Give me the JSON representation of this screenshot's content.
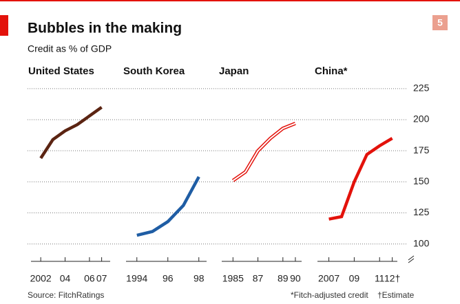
{
  "header": {
    "title": "Bubbles in the making",
    "subtitle": "Credit as % of GDP",
    "badge": "5"
  },
  "footer": {
    "source": "Source: FitchRatings",
    "notes": [
      "*Fitch-adjusted credit",
      "†Estimate"
    ]
  },
  "chart_data": [
    {
      "type": "line",
      "title": "United States",
      "color": "#5b2412",
      "x": [
        2002,
        2003,
        2004,
        2005,
        2006,
        2007
      ],
      "values": [
        169,
        184,
        191,
        196,
        203,
        210
      ],
      "xlim": [
        2001.2,
        2007.7
      ],
      "xticks": [
        {
          "value": 2002,
          "label": "2002"
        },
        {
          "value": 2004,
          "label": "04"
        },
        {
          "value": 2006,
          "label": "06"
        },
        {
          "value": 2007,
          "label": "07"
        }
      ],
      "ylim": [
        86,
        231
      ]
    },
    {
      "type": "line",
      "title": "South Korea",
      "color": "#1f5da4",
      "x": [
        1994,
        1995,
        1996,
        1997,
        1998
      ],
      "values": [
        107,
        110,
        118,
        131,
        154
      ],
      "xlim": [
        1993.3,
        1998.5
      ],
      "xticks": [
        1994,
        {
          "value": 1996,
          "label": "96"
        },
        {
          "value": 1998,
          "label": "98"
        }
      ],
      "ylim": [
        86,
        231
      ]
    },
    {
      "type": "line",
      "title": "Japan",
      "color": "#e3120b",
      "style": "outline",
      "x": [
        1985,
        1986,
        1987,
        1988,
        1989,
        1990
      ],
      "values": [
        151,
        158,
        175,
        185,
        193,
        197
      ],
      "xlim": [
        1984.1,
        1990.5
      ],
      "xticks": [
        1985,
        {
          "value": 1987,
          "label": "87"
        },
        {
          "value": 1989,
          "label": "89"
        },
        {
          "value": 1990,
          "label": "90"
        }
      ],
      "ylim": [
        86,
        231
      ]
    },
    {
      "type": "line",
      "title": "China*",
      "color": "#e3120b",
      "x": [
        2007,
        2008,
        2009,
        2010,
        2011,
        2012
      ],
      "values": [
        120,
        122,
        150,
        172,
        179,
        185
      ],
      "xlim": [
        2006.1,
        2012.4
      ],
      "xticks": [
        2007,
        {
          "value": 2009,
          "label": "09"
        },
        {
          "value": 2011,
          "label": "11"
        },
        {
          "value": 2012,
          "label": "12†"
        }
      ],
      "ylim": [
        86,
        231
      ],
      "yticks": [
        100,
        125,
        150,
        175,
        200,
        225
      ],
      "grid": true
    }
  ]
}
